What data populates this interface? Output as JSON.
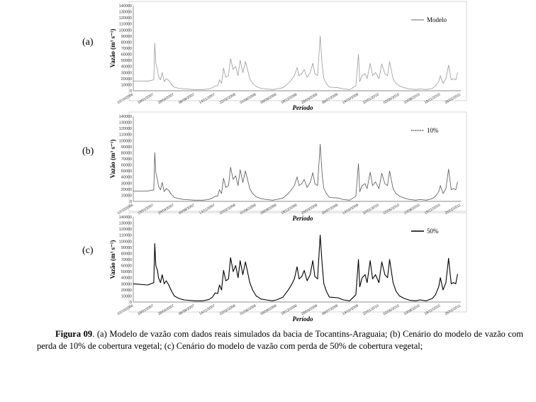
{
  "panel_labels": [
    "(a)",
    "(b)",
    "(c)"
  ],
  "caption": {
    "prefix": "Figura 09",
    "text": ". (a) Modelo de vazão com dados reais simulados da bacia de Tocantins-Araguaia; (b) Cenário do modelo de vazão com perda de 10% de cobertura vegetal; (c) Cenário do modelo de vazão com perda de 50% de cobertura vegetal;"
  },
  "chart_data": [
    {
      "type": "line",
      "ylabel": "Vazão (m³ s⁻¹)",
      "xlabel": "Período",
      "ylim": [
        0,
        140000
      ],
      "yticks": [
        0,
        10000,
        20000,
        30000,
        40000,
        50000,
        60000,
        70000,
        80000,
        90000,
        100000,
        110000,
        120000,
        130000,
        140000
      ],
      "xticks": [
        "10/10/2006",
        "18/01/2007",
        "28/04/2007",
        "06/08/2007",
        "14/11/2007",
        "22/02/2008",
        "01/06/2008",
        "09/09/2008",
        "18/12/2008",
        "28/03/2009",
        "06/07/2009",
        "14/10/2009",
        "22/01/2010",
        "02/05/2010",
        "10/08/2010",
        "18/11/2010",
        "26/02/2011"
      ],
      "legend": "top-right",
      "grid": false,
      "series": [
        {
          "name": "Modelo",
          "color": "#9a9a9a",
          "x": [
            "10/10/2006",
            "20/12/2006",
            "18/01/2007",
            "23/01/2007",
            "28/01/2007",
            "05/02/2007",
            "10/02/2007",
            "20/02/2007",
            "28/02/2007",
            "10/03/2007",
            "20/03/2007",
            "01/04/2007",
            "15/04/2007",
            "28/04/2007",
            "20/05/2007",
            "15/06/2007",
            "06/08/2007",
            "15/09/2007",
            "14/10/2007",
            "01/11/2007",
            "14/11/2007",
            "26/11/2007",
            "05/12/2007",
            "15/12/2007",
            "25/12/2007",
            "05/01/2008",
            "18/01/2008",
            "28/01/2008",
            "10/02/2008",
            "22/02/2008",
            "05/03/2008",
            "15/03/2008",
            "28/03/2008",
            "10/04/2008",
            "20/04/2008",
            "01/05/2008",
            "15/05/2008",
            "01/06/2008",
            "25/06/2008",
            "20/07/2008",
            "20/08/2008",
            "09/09/2008",
            "10/10/2008",
            "05/11/2008",
            "20/11/2008",
            "05/12/2008",
            "18/12/2008",
            "28/12/2008",
            "10/01/2009",
            "22/01/2009",
            "05/02/2009",
            "20/02/2009",
            "05/03/2009",
            "15/03/2009",
            "28/03/2009",
            "10/04/2009",
            "20/04/2009",
            "28/04/2009",
            "10/05/2009",
            "25/05/2009",
            "06/07/2009",
            "01/08/2009",
            "01/09/2009",
            "01/10/2009",
            "14/10/2009",
            "20/10/2009",
            "01/11/2009",
            "15/11/2009",
            "25/11/2009",
            "10/12/2009",
            "22/12/2009",
            "05/01/2010",
            "22/01/2010",
            "05/02/2010",
            "20/02/2010",
            "05/03/2010",
            "15/03/2010",
            "01/04/2010",
            "15/04/2010",
            "02/05/2010",
            "25/05/2010",
            "20/06/2010",
            "20/07/2010",
            "10/08/2010",
            "10/09/2010",
            "10/10/2010",
            "25/10/2010",
            "10/11/2010",
            "18/11/2010",
            "01/12/2010",
            "15/12/2010",
            "28/12/2010",
            "10/01/2011",
            "20/01/2011",
            "01/02/2011",
            "10/02/2011"
          ],
          "y": [
            16000,
            16000,
            18000,
            78000,
            45000,
            35000,
            24000,
            18000,
            30000,
            15000,
            20000,
            17000,
            10000,
            6000,
            4000,
            3000,
            2000,
            2000,
            3000,
            5000,
            8000,
            8000,
            18000,
            12000,
            37000,
            22000,
            25000,
            53000,
            35000,
            40000,
            25000,
            50000,
            30000,
            48000,
            35000,
            20000,
            12000,
            7000,
            4000,
            3000,
            2000,
            3000,
            5000,
            12000,
            18000,
            25000,
            38000,
            25000,
            28000,
            35000,
            22000,
            30000,
            45000,
            28000,
            25000,
            90000,
            40000,
            20000,
            12000,
            6000,
            5000,
            3000,
            2000,
            8000,
            60000,
            15000,
            25000,
            28000,
            20000,
            45000,
            25000,
            30000,
            20000,
            44000,
            28000,
            25000,
            48000,
            20000,
            12000,
            8000,
            5000,
            3000,
            2000,
            3000,
            2000,
            4000,
            8000,
            15000,
            25000,
            12000,
            20000,
            42000,
            18000,
            20000,
            18000,
            30000
          ]
        }
      ]
    },
    {
      "type": "line",
      "ylabel": "Vazão (m³ s⁻¹)",
      "xlabel": "Período",
      "ylim": [
        0,
        140000
      ],
      "yticks": [
        0,
        10000,
        20000,
        30000,
        40000,
        50000,
        60000,
        70000,
        80000,
        90000,
        100000,
        110000,
        120000,
        130000,
        140000
      ],
      "xticks": [
        "10/10/2006",
        "18/01/2007",
        "28/04/2007",
        "06/08/2007",
        "14/11/2007",
        "22/02/2008",
        "01/06/2008",
        "09/09/2008",
        "18/12/2008",
        "28/03/2009",
        "06/07/2009",
        "14/10/2009",
        "22/01/2010",
        "02/05/2010",
        "10/08/2010",
        "18/11/2010",
        "26/02/2011"
      ],
      "legend": "top-right",
      "grid": false,
      "series": [
        {
          "name": "10%",
          "color": "#555555",
          "x": [
            "10/10/2006",
            "20/12/2006",
            "18/01/2007",
            "23/01/2007",
            "28/01/2007",
            "05/02/2007",
            "10/02/2007",
            "20/02/2007",
            "28/02/2007",
            "10/03/2007",
            "20/03/2007",
            "01/04/2007",
            "15/04/2007",
            "28/04/2007",
            "20/05/2007",
            "15/06/2007",
            "06/08/2007",
            "15/09/2007",
            "14/10/2007",
            "01/11/2007",
            "14/11/2007",
            "26/11/2007",
            "05/12/2007",
            "15/12/2007",
            "25/12/2007",
            "05/01/2008",
            "18/01/2008",
            "28/01/2008",
            "10/02/2008",
            "22/02/2008",
            "05/03/2008",
            "15/03/2008",
            "28/03/2008",
            "10/04/2008",
            "20/04/2008",
            "01/05/2008",
            "15/05/2008",
            "01/06/2008",
            "25/06/2008",
            "20/07/2008",
            "20/08/2008",
            "09/09/2008",
            "10/10/2008",
            "05/11/2008",
            "20/11/2008",
            "05/12/2008",
            "18/12/2008",
            "28/12/2008",
            "10/01/2009",
            "22/01/2009",
            "05/02/2009",
            "20/02/2009",
            "05/03/2009",
            "15/03/2009",
            "28/03/2009",
            "10/04/2009",
            "20/04/2009",
            "28/04/2009",
            "10/05/2009",
            "25/05/2009",
            "06/07/2009",
            "01/08/2009",
            "01/09/2009",
            "01/10/2009",
            "14/10/2009",
            "20/10/2009",
            "01/11/2009",
            "15/11/2009",
            "25/11/2009",
            "10/12/2009",
            "22/12/2009",
            "05/01/2010",
            "22/01/2010",
            "05/02/2010",
            "20/02/2010",
            "05/03/2010",
            "15/03/2010",
            "01/04/2010",
            "15/04/2010",
            "02/05/2010",
            "25/05/2010",
            "20/06/2010",
            "20/07/2010",
            "10/08/2010",
            "10/09/2010",
            "10/10/2010",
            "25/10/2010",
            "10/11/2010",
            "18/11/2010",
            "01/12/2010",
            "15/12/2010",
            "28/12/2010",
            "10/01/2011",
            "20/01/2011",
            "01/02/2011",
            "10/02/2011"
          ],
          "y": [
            17000,
            17000,
            19000,
            80000,
            47000,
            36000,
            25000,
            19000,
            31000,
            16000,
            21000,
            18000,
            11000,
            6500,
            4500,
            3000,
            2000,
            2000,
            3000,
            5500,
            8500,
            8500,
            19000,
            13000,
            38000,
            23000,
            26000,
            56000,
            36000,
            42000,
            26000,
            52000,
            31000,
            50000,
            36000,
            21000,
            13000,
            7500,
            4500,
            3000,
            2000,
            3000,
            5500,
            13000,
            19000,
            26000,
            40000,
            26000,
            29000,
            36000,
            23000,
            31000,
            47000,
            29000,
            26000,
            94000,
            42000,
            21000,
            13000,
            6500,
            5500,
            3000,
            2000,
            8500,
            62000,
            16000,
            26000,
            29000,
            21000,
            48000,
            26000,
            32000,
            21000,
            46000,
            29000,
            26000,
            50000,
            21000,
            13000,
            8500,
            5500,
            3000,
            2000,
            3000,
            2000,
            4500,
            8500,
            16000,
            26000,
            13000,
            21000,
            53000,
            19000,
            21000,
            19000,
            32000
          ]
        }
      ]
    },
    {
      "type": "line",
      "ylabel": "Vazão (m³ s⁻¹)",
      "xlabel": "Período",
      "ylim": [
        0,
        140000
      ],
      "yticks": [
        0,
        10000,
        20000,
        30000,
        40000,
        50000,
        60000,
        70000,
        80000,
        90000,
        100000,
        110000,
        120000,
        130000,
        140000
      ],
      "xticks": [
        "10/10/2006",
        "18/01/2007",
        "28/04/2007",
        "06/08/2007",
        "14/11/2007",
        "22/02/2008",
        "01/06/2008",
        "09/09/2008",
        "18/12/2008",
        "28/03/2009",
        "06/07/2009",
        "14/10/2009",
        "22/01/2010",
        "02/05/2010",
        "10/08/2010",
        "18/11/2010",
        "26/02/2011"
      ],
      "legend": "top-right",
      "grid": false,
      "series": [
        {
          "name": "50%",
          "color": "#000000",
          "x": [
            "10/10/2006",
            "20/12/2006",
            "18/01/2007",
            "23/01/2007",
            "28/01/2007",
            "05/02/2007",
            "10/02/2007",
            "20/02/2007",
            "28/02/2007",
            "10/03/2007",
            "20/03/2007",
            "01/04/2007",
            "15/04/2007",
            "28/04/2007",
            "20/05/2007",
            "15/06/2007",
            "06/08/2007",
            "15/09/2007",
            "14/10/2007",
            "01/11/2007",
            "14/11/2007",
            "26/11/2007",
            "05/12/2007",
            "15/12/2007",
            "25/12/2007",
            "05/01/2008",
            "18/01/2008",
            "28/01/2008",
            "10/02/2008",
            "22/02/2008",
            "05/03/2008",
            "15/03/2008",
            "28/03/2008",
            "10/04/2008",
            "20/04/2008",
            "01/05/2008",
            "15/05/2008",
            "01/06/2008",
            "25/06/2008",
            "20/07/2008",
            "20/08/2008",
            "09/09/2008",
            "10/10/2008",
            "05/11/2008",
            "20/11/2008",
            "05/12/2008",
            "18/12/2008",
            "28/12/2008",
            "10/01/2009",
            "22/01/2009",
            "05/02/2009",
            "20/02/2009",
            "05/03/2009",
            "15/03/2009",
            "28/03/2009",
            "10/04/2009",
            "20/04/2009",
            "28/04/2009",
            "10/05/2009",
            "25/05/2009",
            "06/07/2009",
            "01/08/2009",
            "01/09/2009",
            "01/10/2009",
            "14/10/2009",
            "20/10/2009",
            "01/11/2009",
            "15/11/2009",
            "25/11/2009",
            "10/12/2009",
            "22/12/2009",
            "05/01/2010",
            "22/01/2010",
            "05/02/2010",
            "20/02/2010",
            "05/03/2010",
            "15/03/2010",
            "01/04/2010",
            "15/04/2010",
            "02/05/2010",
            "25/05/2010",
            "20/06/2010",
            "20/07/2010",
            "10/08/2010",
            "10/09/2010",
            "10/10/2010",
            "25/10/2010",
            "10/11/2010",
            "18/11/2010",
            "01/12/2010",
            "15/12/2010",
            "28/12/2010",
            "10/01/2011",
            "20/01/2011",
            "01/02/2011",
            "10/02/2011"
          ],
          "y": [
            30000,
            28000,
            32000,
            96000,
            60000,
            52000,
            40000,
            32000,
            45000,
            30000,
            35000,
            28000,
            18000,
            10000,
            6000,
            3500,
            2000,
            2000,
            4000,
            8000,
            15000,
            14000,
            28000,
            20000,
            52000,
            35000,
            38000,
            73000,
            50000,
            60000,
            40000,
            68000,
            45000,
            66000,
            50000,
            32000,
            20000,
            10000,
            5000,
            3500,
            2000,
            3500,
            8000,
            20000,
            28000,
            38000,
            58000,
            38000,
            42000,
            52000,
            35000,
            45000,
            68000,
            42000,
            38000,
            110000,
            60000,
            30000,
            18000,
            8000,
            7000,
            3500,
            2000,
            12000,
            70000,
            25000,
            40000,
            45000,
            32000,
            68000,
            38000,
            45000,
            32000,
            66000,
            45000,
            40000,
            70000,
            32000,
            18000,
            10000,
            6000,
            3000,
            2000,
            3500,
            2000,
            6000,
            12000,
            25000,
            40000,
            20000,
            32000,
            72000,
            30000,
            32000,
            30000,
            46000
          ]
        }
      ]
    }
  ]
}
